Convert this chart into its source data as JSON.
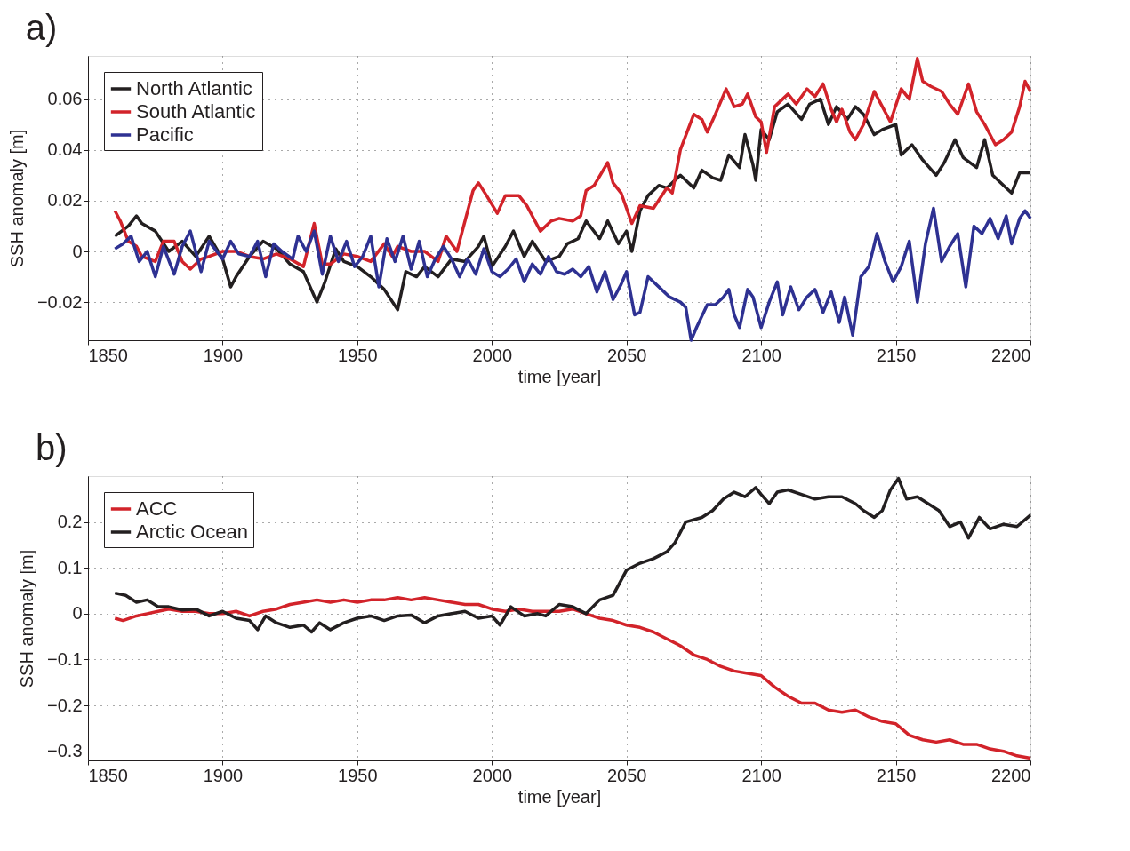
{
  "chart_data": [
    {
      "type": "line",
      "title": "a)",
      "xlabel": "time [year]",
      "ylabel": "SSH anomaly [m]",
      "xlim": [
        1850,
        2200
      ],
      "xticks": [
        1850,
        1900,
        1950,
        2000,
        2050,
        2100,
        2150,
        2200
      ],
      "ylim": [
        -0.035,
        0.077
      ],
      "yticks": [
        {
          "value": -0.02,
          "label": "−0.02"
        },
        0,
        0.02,
        0.04,
        0.06
      ],
      "grid": true,
      "legend": "top left",
      "line_style": "solid",
      "marker": "none",
      "series": [
        {
          "name": "North Atlantic",
          "color": "#231f20",
          "x": [
            1860,
            1865,
            1868,
            1870,
            1875,
            1880,
            1885,
            1890,
            1895,
            1900,
            1903,
            1905,
            1910,
            1915,
            1920,
            1925,
            1930,
            1935,
            1938,
            1942,
            1945,
            1950,
            1955,
            1960,
            1965,
            1968,
            1972,
            1975,
            1980,
            1985,
            1990,
            1995,
            1997,
            2000,
            2005,
            2008,
            2012,
            2015,
            2020,
            2025,
            2028,
            2032,
            2035,
            2040,
            2043,
            2047,
            2050,
            2052,
            2055,
            2058,
            2062,
            2065,
            2070,
            2075,
            2078,
            2082,
            2085,
            2088,
            2092,
            2094,
            2097,
            2098,
            2100,
            2103,
            2106,
            2110,
            2115,
            2118,
            2122,
            2125,
            2128,
            2132,
            2135,
            2138,
            2142,
            2145,
            2150,
            2152,
            2156,
            2160,
            2165,
            2168,
            2172,
            2175,
            2180,
            2183,
            2186,
            2190,
            2193,
            2196,
            2200
          ],
          "values": [
            0.006,
            0.01,
            0.014,
            0.011,
            0.008,
            0.0,
            0.004,
            -0.002,
            0.006,
            -0.003,
            -0.014,
            -0.01,
            -0.002,
            0.004,
            0.001,
            -0.005,
            -0.008,
            -0.02,
            -0.012,
            0.001,
            -0.004,
            -0.006,
            -0.01,
            -0.015,
            -0.023,
            -0.008,
            -0.01,
            -0.006,
            -0.01,
            -0.003,
            -0.004,
            0.002,
            0.006,
            -0.006,
            0.002,
            0.008,
            -0.002,
            0.004,
            -0.004,
            -0.002,
            0.003,
            0.005,
            0.012,
            0.005,
            0.012,
            0.003,
            0.008,
            0.0,
            0.016,
            0.022,
            0.026,
            0.025,
            0.03,
            0.025,
            0.032,
            0.029,
            0.028,
            0.038,
            0.033,
            0.046,
            0.034,
            0.028,
            0.048,
            0.044,
            0.055,
            0.058,
            0.052,
            0.058,
            0.06,
            0.05,
            0.057,
            0.052,
            0.057,
            0.054,
            0.046,
            0.048,
            0.05,
            0.038,
            0.042,
            0.036,
            0.03,
            0.035,
            0.044,
            0.037,
            0.033,
            0.044,
            0.03,
            0.026,
            0.023,
            0.031,
            0.031
          ]
        },
        {
          "name": "South Atlantic",
          "color": "#d2232a",
          "x": [
            1860,
            1862,
            1865,
            1868,
            1870,
            1875,
            1878,
            1882,
            1885,
            1888,
            1892,
            1895,
            1900,
            1905,
            1910,
            1915,
            1920,
            1925,
            1930,
            1934,
            1937,
            1940,
            1945,
            1950,
            1955,
            1960,
            1963,
            1965,
            1970,
            1975,
            1980,
            1983,
            1987,
            1990,
            1993,
            1995,
            1998,
            2002,
            2005,
            2010,
            2013,
            2015,
            2018,
            2022,
            2025,
            2030,
            2033,
            2035,
            2038,
            2043,
            2045,
            2048,
            2052,
            2055,
            2060,
            2065,
            2067,
            2070,
            2075,
            2078,
            2080,
            2083,
            2087,
            2090,
            2093,
            2095,
            2098,
            2100,
            2102,
            2105,
            2110,
            2113,
            2117,
            2120,
            2123,
            2126,
            2128,
            2130,
            2133,
            2135,
            2138,
            2142,
            2145,
            2148,
            2152,
            2155,
            2158,
            2160,
            2163,
            2167,
            2170,
            2173,
            2177,
            2180,
            2183,
            2187,
            2190,
            2193,
            2196,
            2198,
            2200
          ],
          "values": [
            0.016,
            0.012,
            0.004,
            0.002,
            -0.002,
            -0.004,
            0.004,
            0.004,
            -0.004,
            -0.007,
            -0.003,
            -0.002,
            0.0,
            0.0,
            -0.002,
            -0.003,
            -0.001,
            -0.003,
            -0.006,
            0.011,
            -0.005,
            -0.005,
            -0.001,
            -0.002,
            -0.004,
            0.003,
            -0.002,
            0.002,
            0.0,
            0.0,
            -0.004,
            0.006,
            0.0,
            0.012,
            0.024,
            0.027,
            0.022,
            0.015,
            0.022,
            0.022,
            0.018,
            0.014,
            0.008,
            0.012,
            0.013,
            0.012,
            0.014,
            0.024,
            0.026,
            0.035,
            0.027,
            0.023,
            0.011,
            0.018,
            0.017,
            0.025,
            0.023,
            0.04,
            0.054,
            0.052,
            0.047,
            0.054,
            0.064,
            0.057,
            0.058,
            0.062,
            0.053,
            0.051,
            0.039,
            0.057,
            0.062,
            0.058,
            0.064,
            0.061,
            0.066,
            0.056,
            0.051,
            0.056,
            0.047,
            0.044,
            0.05,
            0.063,
            0.057,
            0.051,
            0.064,
            0.06,
            0.076,
            0.067,
            0.065,
            0.063,
            0.058,
            0.054,
            0.066,
            0.055,
            0.05,
            0.042,
            0.044,
            0.047,
            0.057,
            0.067,
            0.063
          ]
        },
        {
          "name": "Pacific",
          "color": "#2e3192",
          "x": [
            1860,
            1863,
            1866,
            1869,
            1872,
            1875,
            1878,
            1882,
            1885,
            1888,
            1892,
            1895,
            1900,
            1903,
            1906,
            1910,
            1913,
            1916,
            1919,
            1922,
            1926,
            1928,
            1931,
            1934,
            1937,
            1940,
            1943,
            1946,
            1949,
            1952,
            1955,
            1958,
            1961,
            1964,
            1967,
            1970,
            1973,
            1976,
            1979,
            1982,
            1985,
            1988,
            1991,
            1994,
            1997,
            2000,
            2003,
            2006,
            2009,
            2012,
            2015,
            2018,
            2021,
            2024,
            2027,
            2030,
            2033,
            2036,
            2039,
            2042,
            2045,
            2048,
            2050,
            2053,
            2055,
            2058,
            2060,
            2063,
            2066,
            2070,
            2072,
            2074,
            2076,
            2080,
            2083,
            2086,
            2088,
            2090,
            2092,
            2095,
            2097,
            2100,
            2103,
            2106,
            2108,
            2111,
            2114,
            2117,
            2120,
            2123,
            2126,
            2129,
            2131,
            2134,
            2137,
            2140,
            2143,
            2146,
            2149,
            2152,
            2155,
            2158,
            2161,
            2164,
            2167,
            2170,
            2173,
            2176,
            2179,
            2182,
            2185,
            2188,
            2191,
            2193,
            2196,
            2198,
            2200
          ],
          "values": [
            0.001,
            0.003,
            0.006,
            -0.004,
            0.0,
            -0.01,
            0.002,
            -0.009,
            0.002,
            0.008,
            -0.008,
            0.004,
            -0.003,
            0.004,
            -0.001,
            -0.002,
            0.004,
            -0.01,
            0.003,
            0.0,
            -0.003,
            0.006,
            0.0,
            0.008,
            -0.009,
            0.006,
            -0.004,
            0.004,
            -0.006,
            -0.002,
            0.006,
            -0.014,
            0.005,
            -0.004,
            0.006,
            -0.007,
            0.004,
            -0.01,
            -0.003,
            0.002,
            -0.003,
            -0.01,
            -0.003,
            -0.009,
            0.001,
            -0.008,
            -0.01,
            -0.007,
            -0.003,
            -0.012,
            -0.005,
            -0.009,
            -0.002,
            -0.008,
            -0.009,
            -0.007,
            -0.01,
            -0.006,
            -0.016,
            -0.008,
            -0.019,
            -0.013,
            -0.008,
            -0.025,
            -0.024,
            -0.01,
            -0.012,
            -0.015,
            -0.018,
            -0.02,
            -0.022,
            -0.035,
            -0.03,
            -0.021,
            -0.021,
            -0.018,
            -0.015,
            -0.025,
            -0.03,
            -0.015,
            -0.018,
            -0.03,
            -0.02,
            -0.012,
            -0.025,
            -0.014,
            -0.023,
            -0.018,
            -0.015,
            -0.024,
            -0.016,
            -0.028,
            -0.018,
            -0.033,
            -0.01,
            -0.006,
            0.007,
            -0.004,
            -0.012,
            -0.006,
            0.004,
            -0.02,
            0.003,
            0.017,
            -0.004,
            0.002,
            0.007,
            -0.014,
            0.01,
            0.007,
            0.013,
            0.005,
            0.014,
            0.003,
            0.013,
            0.016,
            0.013
          ]
        }
      ]
    },
    {
      "type": "line",
      "title": "b)",
      "xlabel": "time [year]",
      "ylabel": "SSH anomaly [m]",
      "xlim": [
        1850,
        2200
      ],
      "xticks": [
        1850,
        1900,
        1950,
        2000,
        2050,
        2100,
        2150,
        2200
      ],
      "ylim": [
        -0.32,
        0.3
      ],
      "yticks": [
        {
          "value": -0.3,
          "label": "−0.3"
        },
        {
          "value": -0.2,
          "label": "−0.2"
        },
        {
          "value": -0.1,
          "label": "−0.1"
        },
        0,
        0.1,
        0.2
      ],
      "grid": true,
      "legend": "top left",
      "line_style": "solid",
      "marker": "none",
      "series": [
        {
          "name": "ACC",
          "color": "#d2232a",
          "x": [
            1860,
            1863,
            1868,
            1872,
            1876,
            1880,
            1885,
            1890,
            1895,
            1900,
            1905,
            1910,
            1915,
            1920,
            1925,
            1930,
            1935,
            1940,
            1945,
            1950,
            1955,
            1960,
            1965,
            1970,
            1975,
            1980,
            1985,
            1990,
            1995,
            2000,
            2005,
            2010,
            2015,
            2020,
            2025,
            2030,
            2035,
            2040,
            2045,
            2050,
            2055,
            2060,
            2065,
            2070,
            2075,
            2080,
            2085,
            2090,
            2095,
            2100,
            2105,
            2110,
            2115,
            2120,
            2125,
            2130,
            2135,
            2140,
            2145,
            2150,
            2155,
            2160,
            2165,
            2170,
            2175,
            2180,
            2185,
            2190,
            2195,
            2200
          ],
          "values": [
            -0.01,
            -0.015,
            -0.005,
            0.0,
            0.005,
            0.01,
            0.005,
            0.005,
            0.0,
            0.0,
            0.005,
            -0.005,
            0.005,
            0.01,
            0.02,
            0.025,
            0.03,
            0.025,
            0.03,
            0.025,
            0.03,
            0.03,
            0.035,
            0.03,
            0.035,
            0.03,
            0.025,
            0.02,
            0.02,
            0.01,
            0.005,
            0.01,
            0.005,
            0.005,
            0.005,
            0.01,
            0.0,
            -0.01,
            -0.015,
            -0.025,
            -0.03,
            -0.04,
            -0.055,
            -0.07,
            -0.09,
            -0.1,
            -0.115,
            -0.125,
            -0.13,
            -0.135,
            -0.16,
            -0.18,
            -0.195,
            -0.195,
            -0.21,
            -0.215,
            -0.21,
            -0.225,
            -0.235,
            -0.24,
            -0.265,
            -0.275,
            -0.28,
            -0.275,
            -0.285,
            -0.285,
            -0.295,
            -0.3,
            -0.31,
            -0.315
          ]
        },
        {
          "name": "Arctic Ocean",
          "color": "#231f20",
          "x": [
            1860,
            1864,
            1868,
            1872,
            1876,
            1880,
            1885,
            1890,
            1895,
            1900,
            1905,
            1910,
            1913,
            1916,
            1920,
            1925,
            1930,
            1933,
            1936,
            1940,
            1945,
            1950,
            1955,
            1960,
            1965,
            1970,
            1975,
            1980,
            1985,
            1990,
            1995,
            2000,
            2003,
            2007,
            2012,
            2017,
            2020,
            2025,
            2030,
            2035,
            2040,
            2045,
            2050,
            2055,
            2060,
            2065,
            2068,
            2072,
            2078,
            2082,
            2086,
            2090,
            2094,
            2098,
            2100,
            2103,
            2106,
            2110,
            2115,
            2120,
            2125,
            2130,
            2135,
            2138,
            2142,
            2145,
            2148,
            2151,
            2154,
            2158,
            2162,
            2166,
            2170,
            2174,
            2177,
            2181,
            2185,
            2190,
            2195,
            2200
          ],
          "values": [
            0.045,
            0.04,
            0.025,
            0.03,
            0.015,
            0.015,
            0.008,
            0.01,
            -0.005,
            0.005,
            -0.01,
            -0.015,
            -0.035,
            -0.005,
            -0.02,
            -0.03,
            -0.025,
            -0.04,
            -0.02,
            -0.035,
            -0.02,
            -0.01,
            -0.005,
            -0.015,
            -0.005,
            -0.003,
            -0.02,
            -0.005,
            0.0,
            0.005,
            -0.01,
            -0.005,
            -0.025,
            0.015,
            -0.005,
            0.0,
            -0.005,
            0.02,
            0.015,
            0.0,
            0.03,
            0.04,
            0.095,
            0.11,
            0.12,
            0.135,
            0.155,
            0.2,
            0.21,
            0.225,
            0.25,
            0.265,
            0.255,
            0.275,
            0.26,
            0.24,
            0.265,
            0.27,
            0.26,
            0.25,
            0.255,
            0.255,
            0.24,
            0.225,
            0.21,
            0.225,
            0.27,
            0.295,
            0.25,
            0.255,
            0.24,
            0.225,
            0.19,
            0.2,
            0.165,
            0.21,
            0.185,
            0.195,
            0.19,
            0.215
          ]
        }
      ]
    }
  ]
}
